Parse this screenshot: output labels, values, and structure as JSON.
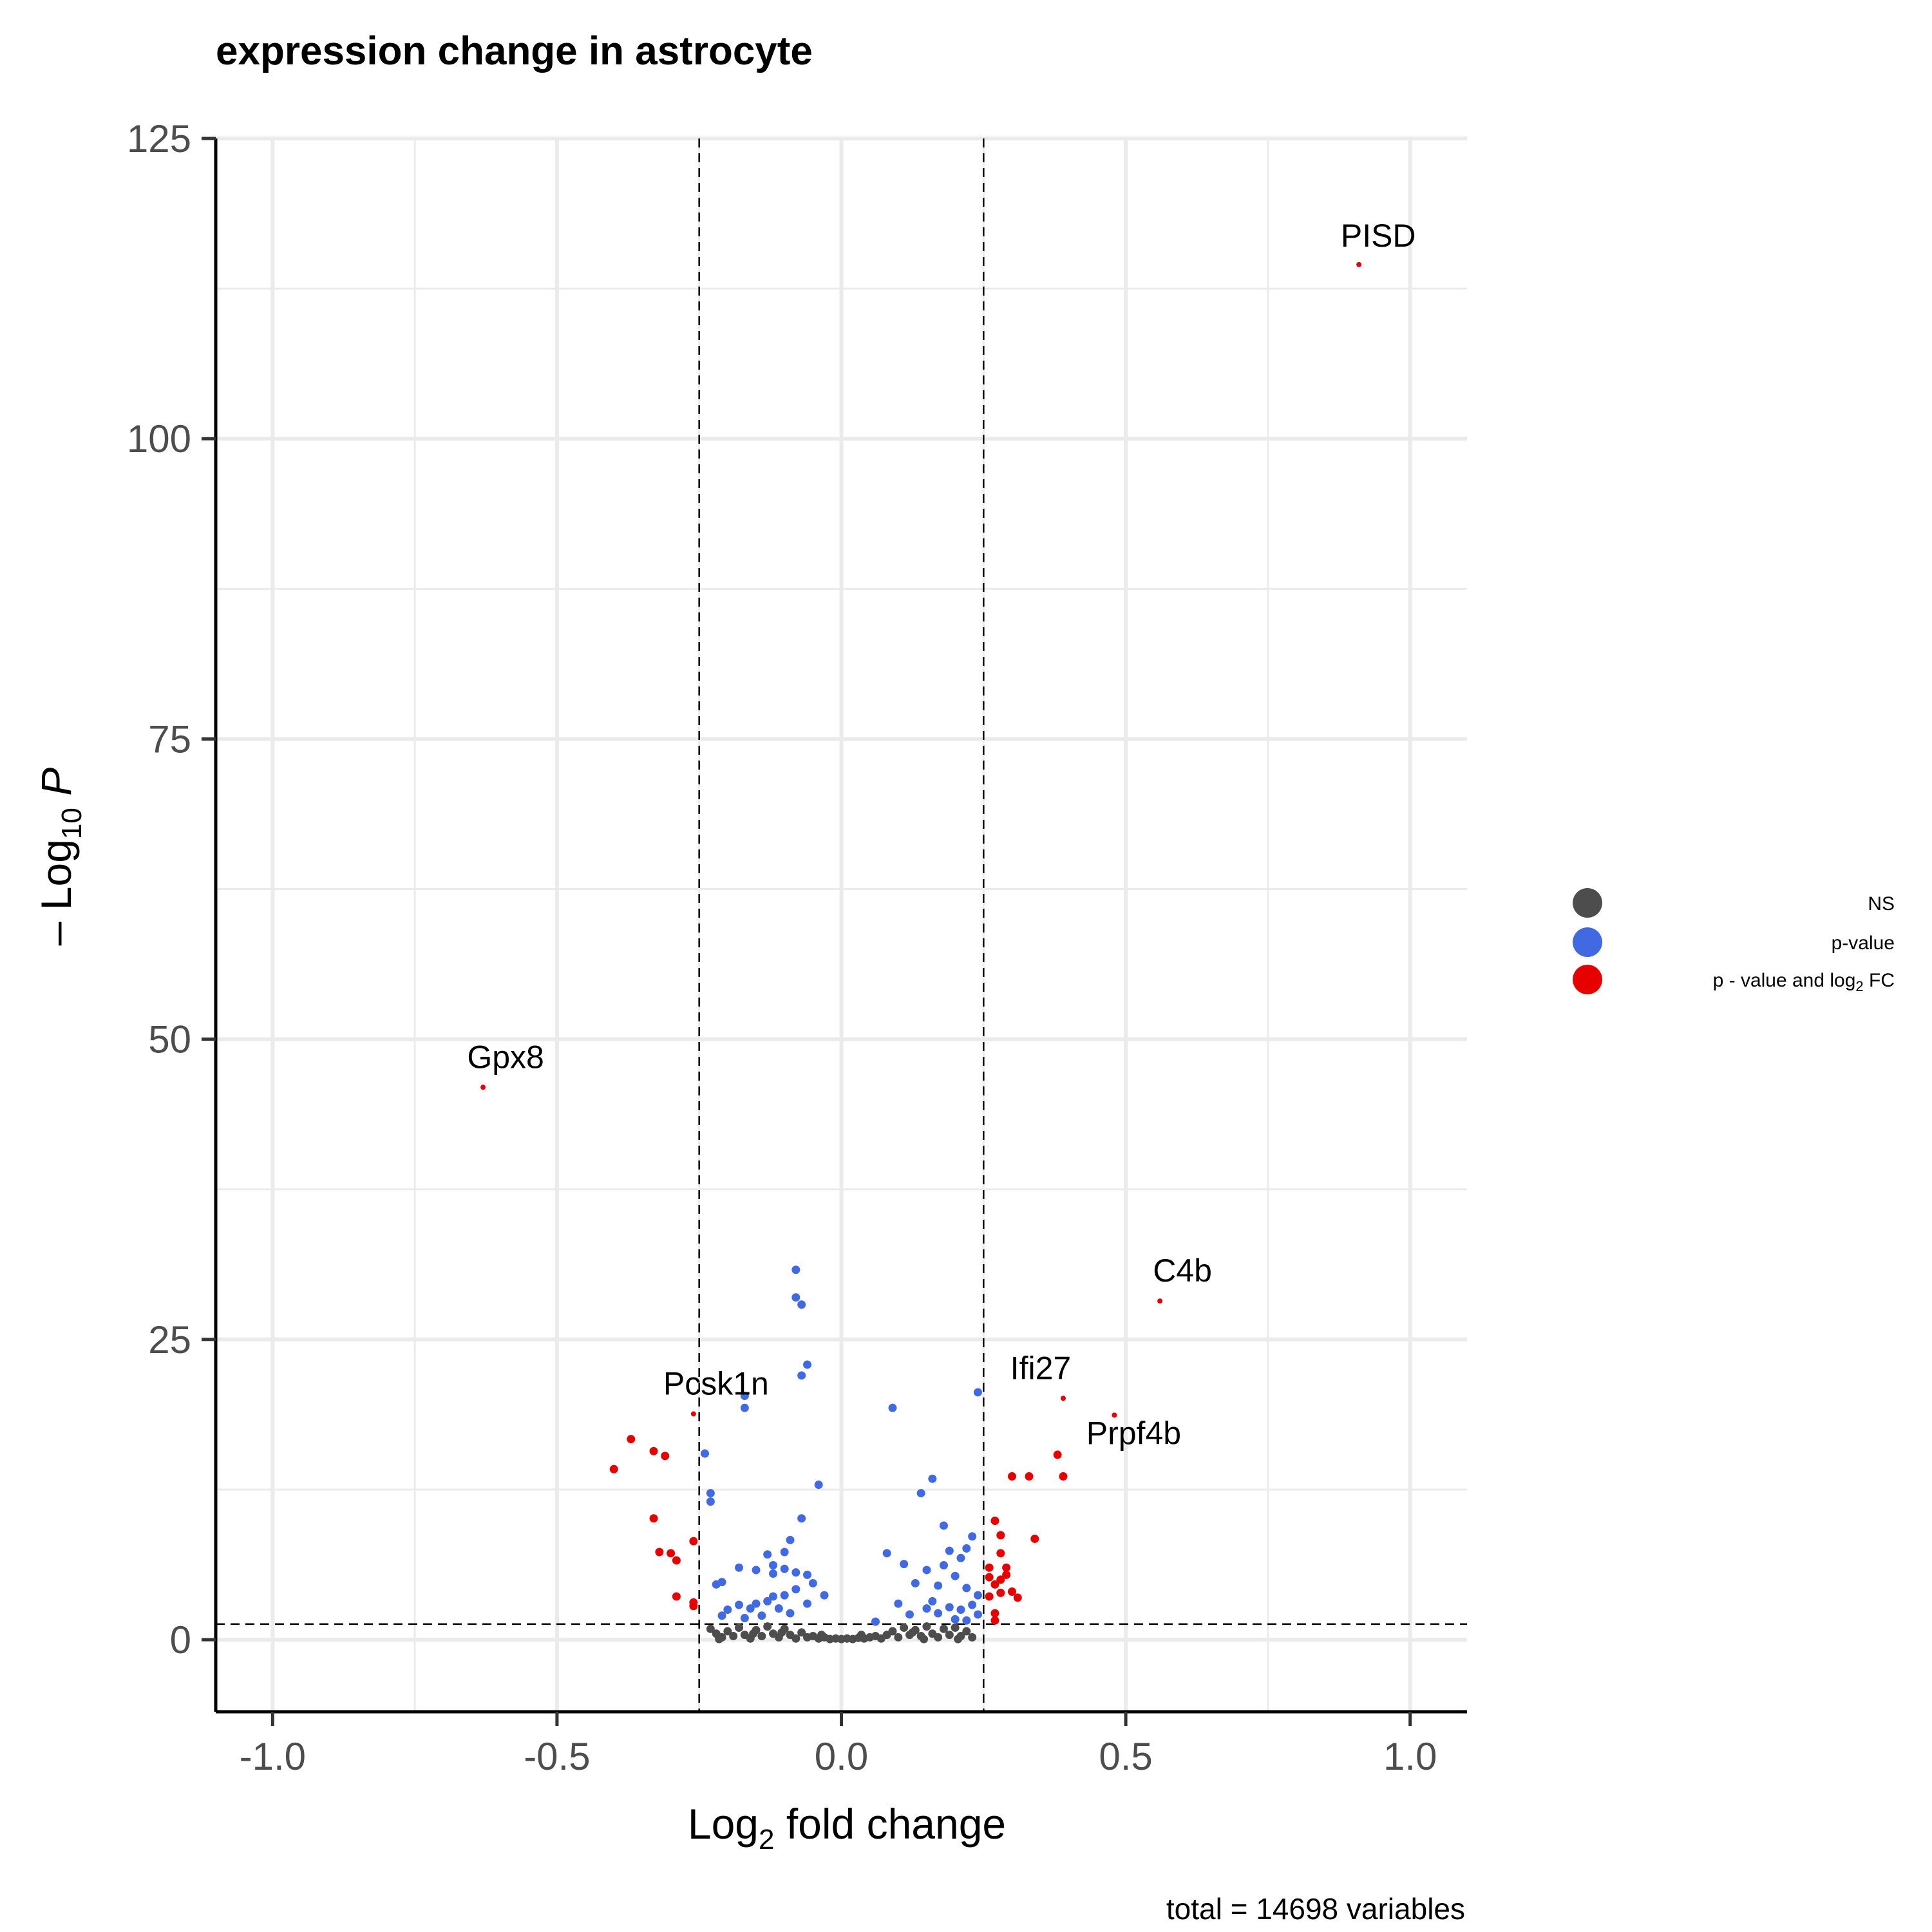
{
  "chart_data": {
    "type": "scatter",
    "title": "expression change in  astrocyte",
    "xlabel": "Log2 fold change",
    "ylabel": "- Log10 P",
    "caption": "total = 14698 variables",
    "xlim": [
      -1.1,
      1.1
    ],
    "ylim": [
      -6,
      125
    ],
    "xticks": [
      -1.0,
      -0.5,
      0.0,
      0.5,
      1.0
    ],
    "xtick_labels": [
      "-1.0",
      "-0.5",
      "0.0",
      "0.5",
      "1.0"
    ],
    "yticks": [
      0,
      25,
      50,
      75,
      100,
      125
    ],
    "ytick_labels": [
      "0",
      "25",
      "50",
      "75",
      "100",
      "125"
    ],
    "grid": true,
    "thresholds": {
      "log2fc": [
        -0.25,
        0.25
      ],
      "neg_log10_p": 1.3
    },
    "legend": {
      "position": "right",
      "entries": [
        {
          "label": "NS",
          "color": "#4d4d4d"
        },
        {
          "label": "p-value",
          "color": "#4169e1"
        },
        {
          "label": "p - value and log2 FC",
          "color": "#e60000"
        }
      ]
    },
    "labeled_genes": [
      {
        "name": "PISD",
        "x": 0.91,
        "y": 114.5
      },
      {
        "name": "Gpx8",
        "x": -0.63,
        "y": 46.0
      },
      {
        "name": "C4b",
        "x": 0.56,
        "y": 28.2
      },
      {
        "name": "Pcsk1n",
        "x": -0.26,
        "y": 18.8
      },
      {
        "name": "Ifi27",
        "x": 0.39,
        "y": 20.1
      },
      {
        "name": "Prpf4b",
        "x": 0.48,
        "y": 18.7
      }
    ],
    "series": [
      {
        "name": "p - value and log2 FC",
        "color": "#e60000",
        "points": [
          [
            -0.4,
            14.2
          ],
          [
            -0.37,
            16.7
          ],
          [
            -0.33,
            15.7
          ],
          [
            -0.31,
            15.3
          ],
          [
            -0.33,
            10.1
          ],
          [
            -0.32,
            7.3
          ],
          [
            -0.3,
            7.2
          ],
          [
            -0.29,
            6.6
          ],
          [
            -0.29,
            3.6
          ],
          [
            -0.26,
            3.1
          ],
          [
            -0.26,
            2.8
          ],
          [
            -0.26,
            8.2
          ],
          [
            0.3,
            13.6
          ],
          [
            0.33,
            13.6
          ],
          [
            0.38,
            15.4
          ],
          [
            0.39,
            13.6
          ],
          [
            0.34,
            8.4
          ],
          [
            0.27,
            9.9
          ],
          [
            0.28,
            8.7
          ],
          [
            0.28,
            7.2
          ],
          [
            0.29,
            6.0
          ],
          [
            0.26,
            5.2
          ],
          [
            0.27,
            4.6
          ],
          [
            0.28,
            3.9
          ],
          [
            0.3,
            4.0
          ],
          [
            0.29,
            5.4
          ],
          [
            0.26,
            6.0
          ],
          [
            0.27,
            2.2
          ],
          [
            0.27,
            1.6
          ],
          [
            0.26,
            3.6
          ],
          [
            0.31,
            3.5
          ],
          [
            0.28,
            5.0
          ]
        ]
      },
      {
        "name": "p-value",
        "color": "#4169e1",
        "points": [
          [
            -0.08,
            30.8
          ],
          [
            -0.08,
            28.5
          ],
          [
            -0.07,
            27.9
          ],
          [
            -0.06,
            22.9
          ],
          [
            -0.07,
            22.0
          ],
          [
            -0.17,
            19.3
          ],
          [
            -0.17,
            20.3
          ],
          [
            -0.24,
            15.5
          ],
          [
            -0.23,
            12.2
          ],
          [
            -0.23,
            11.5
          ],
          [
            -0.04,
            12.9
          ],
          [
            -0.07,
            10.1
          ],
          [
            -0.09,
            8.3
          ],
          [
            -0.1,
            7.3
          ],
          [
            -0.13,
            7.1
          ],
          [
            -0.12,
            6.2
          ],
          [
            -0.15,
            5.8
          ],
          [
            -0.18,
            6.0
          ],
          [
            -0.21,
            4.8
          ],
          [
            -0.22,
            4.6
          ],
          [
            -0.12,
            5.5
          ],
          [
            -0.1,
            5.9
          ],
          [
            -0.08,
            5.6
          ],
          [
            -0.06,
            5.4
          ],
          [
            -0.05,
            4.7
          ],
          [
            -0.03,
            3.7
          ],
          [
            -0.06,
            3.0
          ],
          [
            -0.08,
            4.2
          ],
          [
            -0.1,
            3.7
          ],
          [
            -0.12,
            3.6
          ],
          [
            -0.13,
            3.2
          ],
          [
            -0.15,
            3.0
          ],
          [
            -0.16,
            2.6
          ],
          [
            -0.18,
            2.9
          ],
          [
            -0.2,
            2.5
          ],
          [
            -0.21,
            2.0
          ],
          [
            -0.11,
            2.6
          ],
          [
            -0.09,
            2.2
          ],
          [
            -0.14,
            2.0
          ],
          [
            -0.17,
            1.8
          ],
          [
            0.09,
            19.3
          ],
          [
            0.24,
            20.6
          ],
          [
            0.16,
            13.4
          ],
          [
            0.14,
            12.2
          ],
          [
            0.18,
            9.5
          ],
          [
            0.23,
            8.6
          ],
          [
            0.22,
            7.6
          ],
          [
            0.21,
            6.8
          ],
          [
            0.19,
            7.4
          ],
          [
            0.18,
            6.2
          ],
          [
            0.08,
            7.2
          ],
          [
            0.11,
            6.3
          ],
          [
            0.15,
            5.8
          ],
          [
            0.17,
            4.5
          ],
          [
            0.2,
            5.3
          ],
          [
            0.22,
            4.3
          ],
          [
            0.24,
            3.7
          ],
          [
            0.13,
            4.7
          ],
          [
            0.1,
            3.0
          ],
          [
            0.16,
            3.2
          ],
          [
            0.19,
            2.7
          ],
          [
            0.21,
            2.5
          ],
          [
            0.23,
            2.9
          ],
          [
            0.24,
            2.1
          ],
          [
            0.17,
            2.2
          ],
          [
            0.15,
            2.6
          ],
          [
            0.12,
            2.1
          ],
          [
            0.06,
            1.5
          ],
          [
            0.2,
            1.7
          ],
          [
            0.22,
            1.6
          ]
        ]
      },
      {
        "name": "NS",
        "color": "#4d4d4d",
        "points": [
          [
            -0.23,
            0.9
          ],
          [
            -0.22,
            0.5
          ],
          [
            -0.21,
            0.2
          ],
          [
            -0.2,
            0.7
          ],
          [
            -0.19,
            0.3
          ],
          [
            -0.18,
            1.0
          ],
          [
            -0.17,
            0.4
          ],
          [
            -0.16,
            0.1
          ],
          [
            -0.15,
            0.8
          ],
          [
            -0.14,
            0.3
          ],
          [
            -0.13,
            1.1
          ],
          [
            -0.12,
            0.5
          ],
          [
            -0.11,
            0.2
          ],
          [
            -0.1,
            0.9
          ],
          [
            -0.09,
            0.4
          ],
          [
            -0.08,
            0.1
          ],
          [
            -0.07,
            0.6
          ],
          [
            -0.06,
            0.2
          ],
          [
            -0.05,
            0.3
          ],
          [
            -0.04,
            0.1
          ],
          [
            -0.03,
            0.2
          ],
          [
            -0.02,
            0.05
          ],
          [
            -0.01,
            0.1
          ],
          [
            0.0,
            0.05
          ],
          [
            0.01,
            0.1
          ],
          [
            0.02,
            0.05
          ],
          [
            0.03,
            0.15
          ],
          [
            0.04,
            0.1
          ],
          [
            0.05,
            0.2
          ],
          [
            0.06,
            0.3
          ],
          [
            0.07,
            0.1
          ],
          [
            0.08,
            0.4
          ],
          [
            0.09,
            0.7
          ],
          [
            0.1,
            0.2
          ],
          [
            0.11,
            1.0
          ],
          [
            0.12,
            0.4
          ],
          [
            0.13,
            0.8
          ],
          [
            0.14,
            0.3
          ],
          [
            0.15,
            1.1
          ],
          [
            0.16,
            0.5
          ],
          [
            0.17,
            0.2
          ],
          [
            0.18,
            0.9
          ],
          [
            0.19,
            0.4
          ],
          [
            0.2,
            1.0
          ],
          [
            0.21,
            0.3
          ],
          [
            0.22,
            0.7
          ],
          [
            0.23,
            0.2
          ],
          [
            -0.215,
            0.05
          ],
          [
            -0.105,
            0.6
          ],
          [
            0.125,
            0.6
          ],
          [
            0.205,
            0.05
          ],
          [
            0.035,
            0.4
          ],
          [
            -0.035,
            0.4
          ],
          [
            0.145,
            0.05
          ],
          [
            -0.155,
            0.5
          ]
        ]
      }
    ]
  }
}
